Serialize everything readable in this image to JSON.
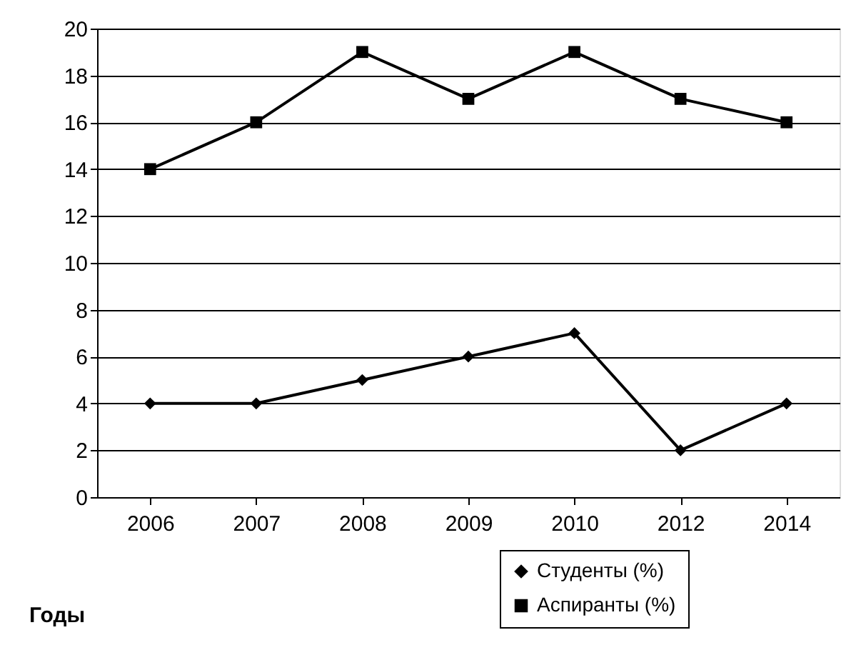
{
  "chart_data": {
    "type": "line",
    "xlabel": "Годы",
    "categories": [
      "2006",
      "2007",
      "2008",
      "2009",
      "2010",
      "2012",
      "2014"
    ],
    "series": [
      {
        "name": "Студенты (%)",
        "color": "#000000",
        "marker": "diamond",
        "values": [
          4,
          4,
          5,
          6,
          7,
          2,
          4
        ]
      },
      {
        "name": "Аспиранты (%)",
        "color": "#000000",
        "marker": "square",
        "values": [
          14,
          16,
          19,
          17,
          19,
          17,
          16
        ]
      }
    ],
    "ylim": [
      0,
      20
    ],
    "yticks": [
      0,
      2,
      4,
      6,
      8,
      10,
      12,
      14,
      16,
      18,
      20
    ],
    "grid": "y",
    "legend": "bottom right",
    "line_style": "solid"
  }
}
